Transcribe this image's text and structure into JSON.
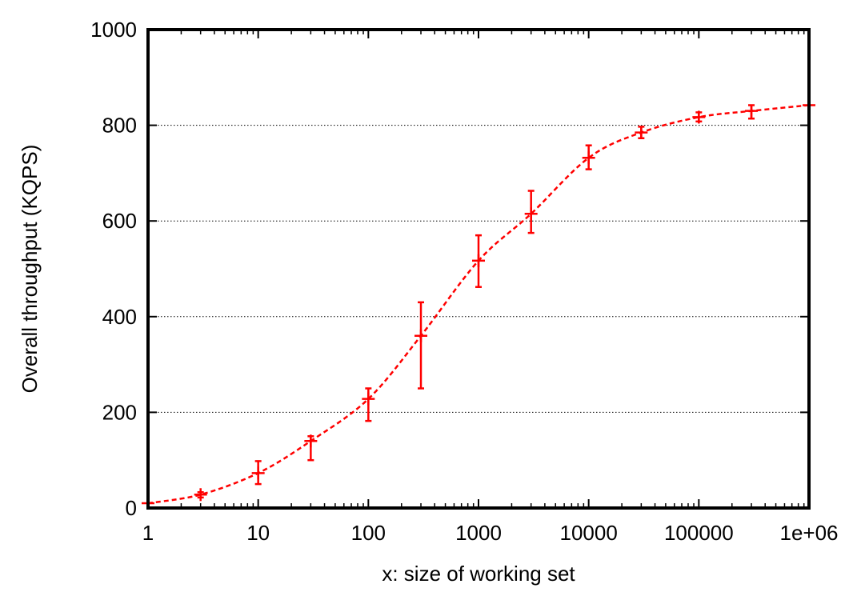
{
  "chart_data": {
    "type": "line",
    "title": "",
    "xlabel": "x: size of working set",
    "ylabel": "Overall throughput (KQPS)",
    "x_scale": "log",
    "xlim": [
      1,
      1000000
    ],
    "ylim": [
      0,
      1000
    ],
    "x_ticks": [
      1,
      10,
      100,
      1000,
      10000,
      100000,
      1000000
    ],
    "x_tick_labels": [
      "1",
      "10",
      "100",
      "1000",
      "10000",
      "100000",
      "1e+06"
    ],
    "y_ticks": [
      0,
      200,
      400,
      600,
      800,
      1000
    ],
    "y_tick_labels": [
      "0",
      "200",
      "400",
      "600",
      "800",
      "1000"
    ],
    "grid": "horizontal dotted",
    "legend": "none",
    "series": [
      {
        "color": "#ff0000",
        "style": "dashed",
        "marker": "plus",
        "error_bars": true,
        "points": [
          {
            "x": 1,
            "y": 10
          },
          {
            "x": 3,
            "y": 28,
            "y_low": 22,
            "y_high": 33
          },
          {
            "x": 10,
            "y": 73,
            "y_low": 50,
            "y_high": 98
          },
          {
            "x": 30,
            "y": 140,
            "y_low": 100,
            "y_high": 150
          },
          {
            "x": 100,
            "y": 228,
            "y_low": 182,
            "y_high": 250
          },
          {
            "x": 300,
            "y": 360,
            "y_low": 250,
            "y_high": 430
          },
          {
            "x": 1000,
            "y": 517,
            "y_low": 462,
            "y_high": 570
          },
          {
            "x": 3000,
            "y": 615,
            "y_low": 575,
            "y_high": 663
          },
          {
            "x": 10000,
            "y": 732,
            "y_low": 708,
            "y_high": 758
          },
          {
            "x": 30000,
            "y": 785,
            "y_low": 773,
            "y_high": 797
          },
          {
            "x": 100000,
            "y": 817,
            "y_low": 808,
            "y_high": 827
          },
          {
            "x": 300000,
            "y": 830,
            "y_low": 814,
            "y_high": 842
          },
          {
            "x": 1000000,
            "y": 842
          }
        ]
      }
    ]
  }
}
